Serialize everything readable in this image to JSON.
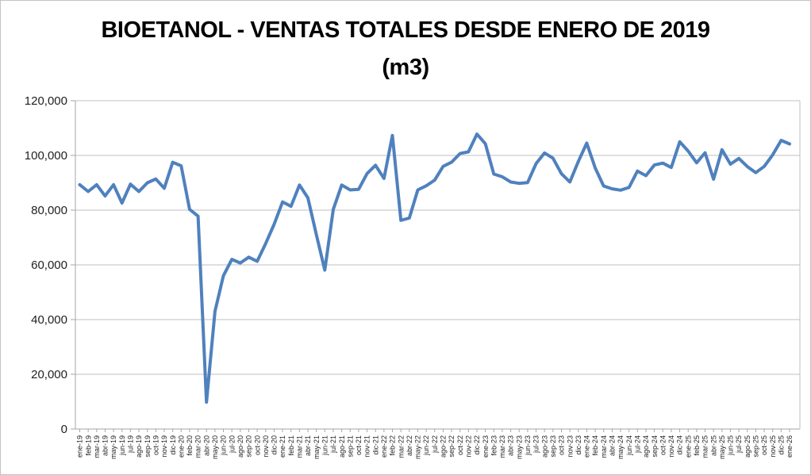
{
  "chart": {
    "title_line1": "BIOETANOL - VENTAS TOTALES DESDE ENERO DE 2019",
    "title_line2": "(m3)"
  },
  "chart_data": {
    "type": "line",
    "title": "BIOETANOL - VENTAS TOTALES DESDE ENERO DE 2019 (m3)",
    "xlabel": "",
    "ylabel": "",
    "ylim": [
      0,
      120000
    ],
    "ytick_step": 20000,
    "ytick_labels": [
      "0",
      "20,000",
      "40,000",
      "60,000",
      "80,000",
      "100,000",
      "120,000"
    ],
    "grid": true,
    "legend": "none",
    "line_color": "#4F81BD",
    "gridline_color": "#bfbfbf",
    "axis_color": "#a6a6a6",
    "categories": [
      "ene-19",
      "feb-19",
      "mar-19",
      "abr-19",
      "may-19",
      "jun-19",
      "jul-19",
      "ago-19",
      "sep-19",
      "oct-19",
      "nov-19",
      "dic-19",
      "ene-20",
      "feb-20",
      "mar-20",
      "abr-20",
      "may-20",
      "jun-20",
      "jul-20",
      "ago-20",
      "sep-20",
      "oct-20",
      "nov-20",
      "dic-20",
      "ene-21",
      "feb-21",
      "mar-21",
      "abr-21",
      "may-21",
      "jun-21",
      "jul-21",
      "ago-21",
      "sep-21",
      "oct-21",
      "nov-21",
      "dic-21",
      "ene-22",
      "feb-22",
      "mar-22",
      "abr-22",
      "may-22",
      "jun-22",
      "jul-22",
      "ago-22",
      "sep-22",
      "oct-22",
      "nov-22",
      "dic-22",
      "ene-23",
      "feb-23",
      "mar-23",
      "abr-23",
      "may-23",
      "jun-23",
      "jul-23",
      "ago-23",
      "sep-23",
      "oct-23",
      "nov-23",
      "dic-23",
      "ene-24",
      "feb-24",
      "mar-24",
      "abr-24",
      "may-24",
      "jun-24",
      "jul-24",
      "ago-24",
      "sep-24",
      "oct-24",
      "nov-24",
      "dic-24",
      "ene-25",
      "feb-25",
      "mar-25",
      "abr-25",
      "may-25",
      "jun-25",
      "jul-25",
      "ago-25",
      "sep-25",
      "oct-25",
      "nov-25",
      "dic-25",
      "ene-26"
    ],
    "values": [
      89300,
      86800,
      89300,
      85200,
      89300,
      82600,
      89500,
      86800,
      90000,
      91400,
      88000,
      97500,
      96200,
      80300,
      77800,
      9800,
      43000,
      56000,
      62000,
      60700,
      62800,
      61300,
      67800,
      74800,
      83000,
      81400,
      89200,
      84500,
      71000,
      58100,
      80300,
      89200,
      87400,
      87600,
      93400,
      96400,
      91600,
      107300,
      76300,
      77100,
      87400,
      88900,
      91000,
      96000,
      97500,
      100700,
      101300,
      107800,
      104300,
      93200,
      92200,
      90300,
      89800,
      90100,
      97000,
      100900,
      99000,
      93300,
      90300,
      97800,
      104500,
      95400,
      88800,
      87800,
      87300,
      88300,
      94300,
      92600,
      96500,
      97200,
      95600,
      105000,
      101600,
      97300,
      101000,
      91300,
      102100,
      96800,
      98900,
      95900,
      93700,
      96000,
      100200,
      105500,
      104200
    ]
  }
}
